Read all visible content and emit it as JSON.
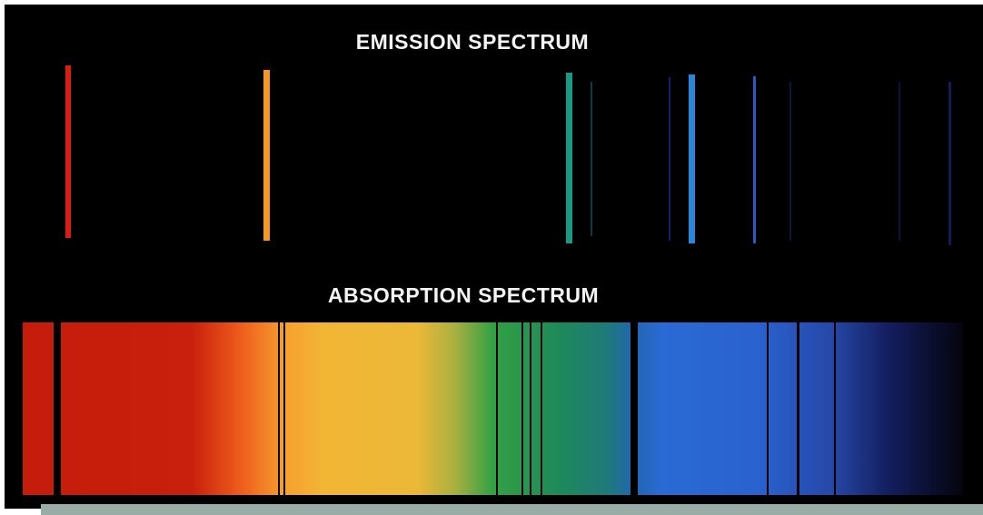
{
  "emission": {
    "title": "EMISSION SPECTRUM"
  },
  "absorption": {
    "title": "ABSORPTION SPECTRUM"
  }
}
